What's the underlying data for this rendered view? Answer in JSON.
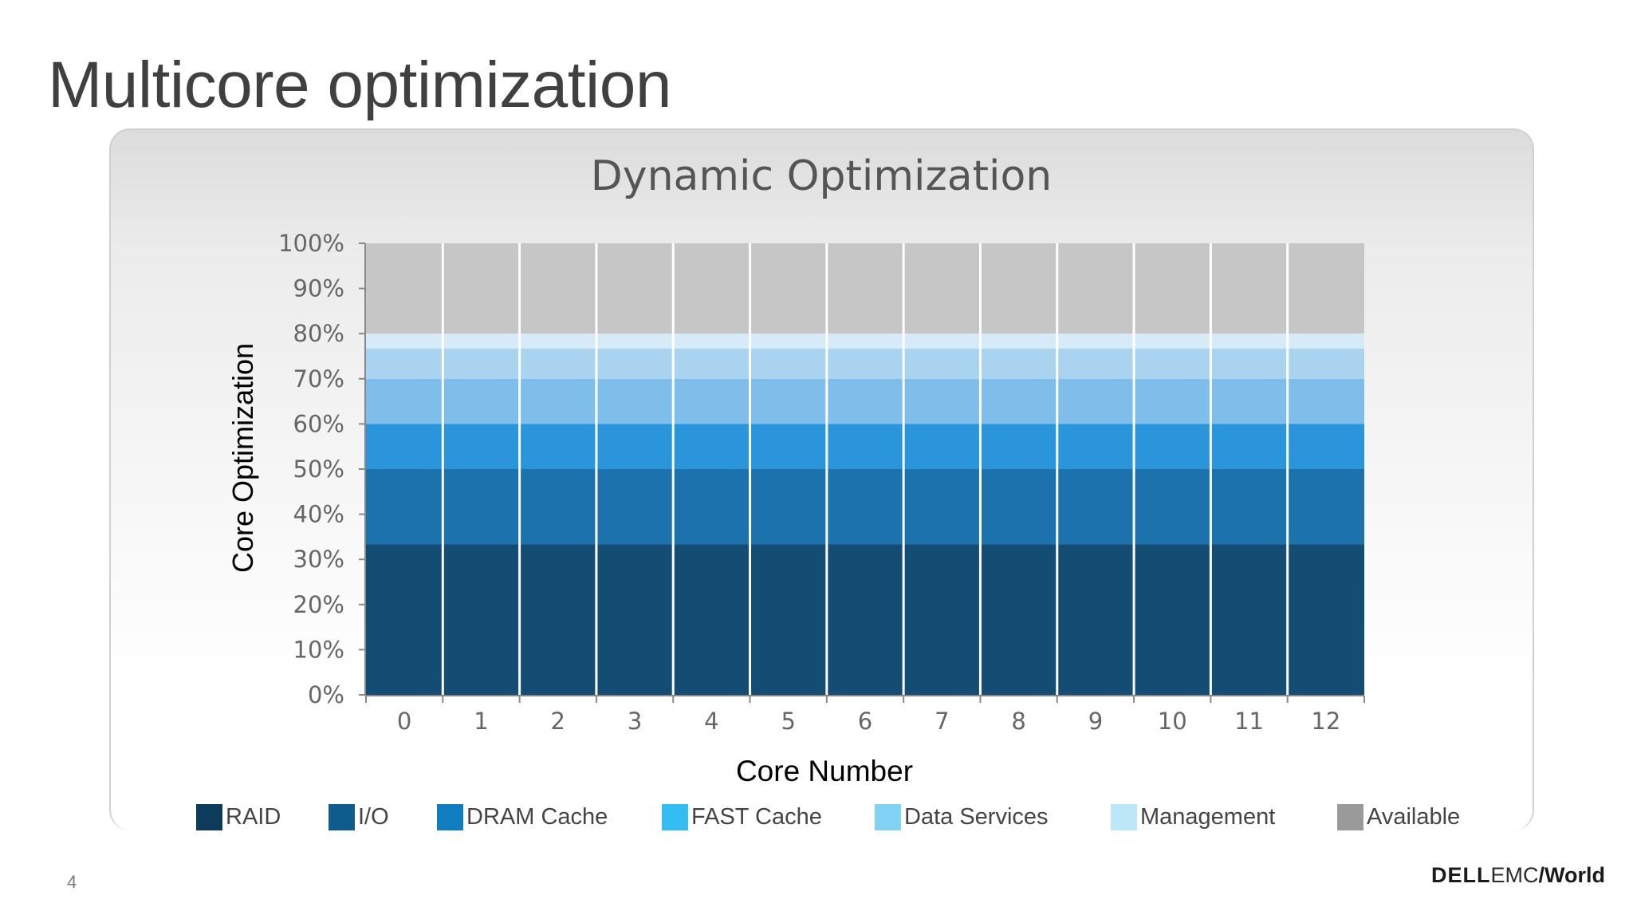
{
  "slide": {
    "title": "Multicore optimization",
    "page_number": "4",
    "logo": {
      "dell": "DELL",
      "emc": "EMC",
      "world": "/World"
    }
  },
  "chart_data": {
    "type": "bar",
    "stacked": true,
    "title": "Dynamic Optimization",
    "xlabel": "Core Number",
    "ylabel": "Core Optimization",
    "categories": [
      "0",
      "1",
      "2",
      "3",
      "4",
      "5",
      "6",
      "7",
      "8",
      "9",
      "10",
      "11",
      "12"
    ],
    "ylim": [
      0,
      100
    ],
    "y_ticks": [
      "0%",
      "10%",
      "20%",
      "30%",
      "40%",
      "50%",
      "60%",
      "70%",
      "80%",
      "90%",
      "100%"
    ],
    "y_tick_values": [
      0,
      10,
      20,
      30,
      40,
      50,
      60,
      70,
      80,
      90,
      100
    ],
    "legend_position": "bottom",
    "series": [
      {
        "name": "RAID",
        "color": "#144d73",
        "values": [
          33.3,
          33.3,
          33.3,
          33.3,
          33.3,
          33.3,
          33.3,
          33.3,
          33.3,
          33.3,
          33.3,
          33.3,
          33.3
        ]
      },
      {
        "name": "I/O",
        "color": "#1c72ad",
        "values": [
          16.7,
          16.7,
          16.7,
          16.7,
          16.7,
          16.7,
          16.7,
          16.7,
          16.7,
          16.7,
          16.7,
          16.7,
          16.7
        ]
      },
      {
        "name": "DRAM Cache",
        "color": "#2b95dc",
        "values": [
          10,
          10,
          10,
          10,
          10,
          10,
          10,
          10,
          10,
          10,
          10,
          10,
          10
        ]
      },
      {
        "name": "FAST Cache",
        "color": "#7fbeeb",
        "values": [
          10,
          10,
          10,
          10,
          10,
          10,
          10,
          10,
          10,
          10,
          10,
          10,
          10
        ]
      },
      {
        "name": "Data Services",
        "color": "#aad3f0",
        "values": [
          6.7,
          6.7,
          6.7,
          6.7,
          6.7,
          6.7,
          6.7,
          6.7,
          6.7,
          6.7,
          6.7,
          6.7,
          6.7
        ]
      },
      {
        "name": "Management",
        "color": "#d6ebf8",
        "values": [
          3.3,
          3.3,
          3.3,
          3.3,
          3.3,
          3.3,
          3.3,
          3.3,
          3.3,
          3.3,
          3.3,
          3.3,
          3.3
        ]
      },
      {
        "name": "Available",
        "color": "#c6c6c6",
        "values": [
          20,
          20,
          20,
          20,
          20,
          20,
          20,
          20,
          20,
          20,
          20,
          20,
          20
        ]
      }
    ],
    "legend": [
      {
        "label": "RAID",
        "color": "#0d3b5c"
      },
      {
        "label": "I/O",
        "color": "#0e5c8e"
      },
      {
        "label": "DRAM Cache",
        "color": "#0f7dbf"
      },
      {
        "label": "FAST Cache",
        "color": "#33bdf2"
      },
      {
        "label": "Data Services",
        "color": "#80d3f5"
      },
      {
        "label": "Management",
        "color": "#bde6f9"
      },
      {
        "label": "Available",
        "color": "#9a9a9a"
      }
    ]
  }
}
